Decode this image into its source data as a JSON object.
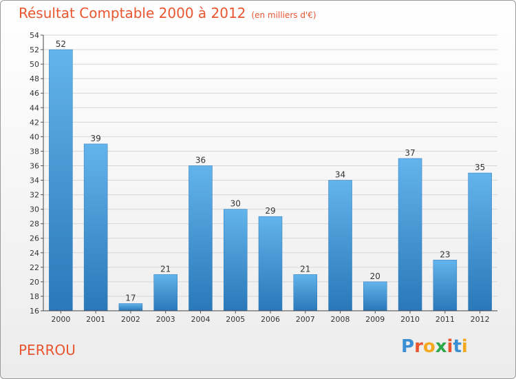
{
  "chart_data": {
    "type": "bar",
    "title": "Résultat Comptable 2000 à 2012",
    "subtitle": "(en milliers d'€)",
    "categories": [
      "2000",
      "2001",
      "2002",
      "2003",
      "2004",
      "2005",
      "2006",
      "2007",
      "2008",
      "2009",
      "2010",
      "2011",
      "2012"
    ],
    "values": [
      52,
      39,
      17,
      21,
      36,
      30,
      29,
      21,
      34,
      20,
      37,
      23,
      35
    ],
    "ylim": [
      16,
      54
    ],
    "ytick_step": 2,
    "xlabel": "",
    "ylabel": "",
    "grid": true,
    "bar_color": "#3a8fd4"
  },
  "location": "PERROU",
  "logo": {
    "text": "Proxiti",
    "letter_colors": [
      "#3a8fd4",
      "#e8552f",
      "#f3a81f",
      "#2ea84a",
      "#e8552f",
      "#3a8fd4",
      "#f3a81f"
    ]
  },
  "colors": {
    "accent": "#e8552f",
    "bar_light": "#63b3ec",
    "bar_dark": "#2a78b8"
  }
}
